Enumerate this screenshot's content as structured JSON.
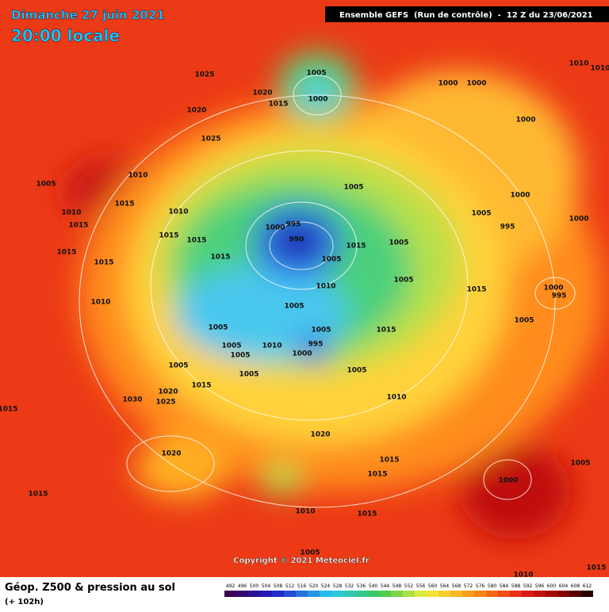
{
  "header": {
    "date": "Dimanche 27 juin 2021",
    "time": "20:00 locale",
    "run": "Ensemble GEFS  (Run de contrôle)  -  12 Z du 23/06/2021"
  },
  "isobar_labels": [
    1025,
    1005,
    1020,
    1000,
    1015,
    1020,
    1025,
    1010,
    1005,
    1005,
    1000,
    1015,
    1010,
    1010,
    1005,
    1000,
    995,
    1000,
    990,
    1015,
    1015,
    1005,
    1015,
    1015,
    1015,
    1015,
    1005,
    1015,
    1005,
    1010,
    1015,
    1010,
    1005,
    1005,
    1015,
    1005,
    1005,
    995,
    1005,
    1010,
    1000,
    1005,
    1005,
    1005,
    1005,
    1015,
    1020,
    1010,
    1030,
    1025,
    1015,
    1020,
    1020,
    1015,
    1005,
    1000,
    1015,
    1015,
    1010,
    1015,
    1005,
    1010,
    1015,
    1000,
    1000,
    1000,
    1010,
    1010,
    1000,
    995,
    995
  ],
  "footer": {
    "title": "Géop. Z500 & pression au sol",
    "subtitle": "(+ 102h)",
    "copyright": "Copyright © 2021 Meteociel.fr",
    "scale": [
      492,
      496,
      500,
      504,
      508,
      512,
      516,
      520,
      524,
      528,
      532,
      536,
      540,
      544,
      548,
      552,
      556,
      560,
      564,
      568,
      572,
      576,
      580,
      584,
      588,
      592,
      596,
      600,
      604,
      608,
      612
    ]
  }
}
